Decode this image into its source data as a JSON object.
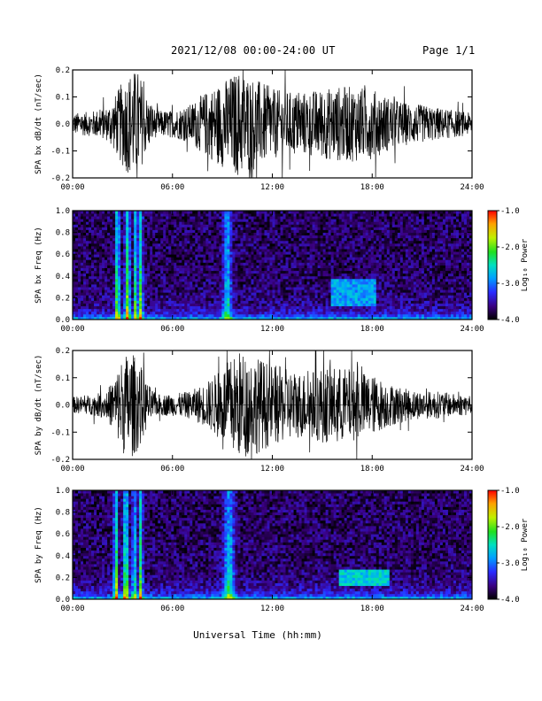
{
  "header": {
    "title": "2021/12/08  00:00-24:00 UT",
    "page": "Page 1/1"
  },
  "footer": {
    "xlabel": "Universal Time (hh:mm)"
  },
  "chart_data": [
    {
      "type": "line",
      "ylabel": "SPA bx dB/dt (nT/sec)",
      "xlim": [
        0,
        24
      ],
      "ylim": [
        -0.2,
        0.2
      ],
      "x_ticks": [
        "00:00",
        "06:00",
        "12:00",
        "18:00",
        "24:00"
      ],
      "y_ticks": [
        "-0.2",
        "-0.1",
        "0.0",
        "0.1",
        "0.2"
      ],
      "envelope": {
        "x": [
          0,
          1,
          2,
          2.5,
          3,
          3.5,
          4,
          4.3,
          5,
          6,
          7,
          8,
          9,
          10,
          11,
          12,
          13,
          14,
          15,
          16,
          17,
          18,
          19,
          20,
          21,
          22,
          23,
          24
        ],
        "amp": [
          0.04,
          0.045,
          0.06,
          0.1,
          0.16,
          0.2,
          0.2,
          0.12,
          0.05,
          0.05,
          0.07,
          0.12,
          0.16,
          0.2,
          0.17,
          0.13,
          0.12,
          0.12,
          0.13,
          0.14,
          0.14,
          0.13,
          0.1,
          0.08,
          0.07,
          0.06,
          0.05,
          0.04
        ]
      }
    },
    {
      "type": "heatmap",
      "ylabel": "SPA bx Freq (Hz)",
      "colorbar_label": "Log₁₀ Power",
      "xlim": [
        0,
        24
      ],
      "ylim": [
        0,
        1.0
      ],
      "clim": [
        -4.0,
        -1.0
      ],
      "x_ticks": [
        "00:00",
        "06:00",
        "12:00",
        "18:00",
        "24:00"
      ],
      "y_ticks": [
        "0.0",
        "0.2",
        "0.4",
        "0.6",
        "0.8",
        "1.0"
      ],
      "cbar_ticks": [
        "-4.0",
        "-3.0",
        "-2.0",
        "-1.0"
      ],
      "bursts": [
        {
          "t": 2.7,
          "width": 0.12,
          "level": -1.9
        },
        {
          "t": 3.3,
          "width": 0.15,
          "level": -2.0
        },
        {
          "t": 3.8,
          "width": 0.1,
          "level": -2.1
        },
        {
          "t": 4.1,
          "width": 0.12,
          "level": -2.0
        },
        {
          "t": 9.3,
          "width": 0.25,
          "level": -2.7
        }
      ],
      "patches": [
        {
          "t0": 15.5,
          "t1": 18.3,
          "f0": 0.12,
          "f1": 0.38,
          "level": -2.6
        }
      ]
    },
    {
      "type": "line",
      "ylabel": "SPA by dB/dt (nT/sec)",
      "xlim": [
        0,
        24
      ],
      "ylim": [
        -0.2,
        0.2
      ],
      "x_ticks": [
        "00:00",
        "06:00",
        "12:00",
        "18:00",
        "24:00"
      ],
      "y_ticks": [
        "-0.2",
        "-0.1",
        "0.0",
        "0.1",
        "0.2"
      ],
      "envelope": {
        "x": [
          0,
          1,
          2,
          2.5,
          3,
          3.5,
          4,
          4.5,
          5,
          6,
          7,
          8,
          9,
          10,
          11,
          12,
          13,
          14,
          15,
          16,
          17,
          18,
          19,
          20,
          21,
          22,
          23,
          24
        ],
        "amp": [
          0.03,
          0.035,
          0.05,
          0.1,
          0.18,
          0.2,
          0.16,
          0.08,
          0.04,
          0.04,
          0.05,
          0.08,
          0.14,
          0.2,
          0.18,
          0.15,
          0.13,
          0.12,
          0.14,
          0.14,
          0.13,
          0.11,
          0.08,
          0.06,
          0.05,
          0.05,
          0.04,
          0.04
        ]
      }
    },
    {
      "type": "heatmap",
      "ylabel": "SPA by Freq (Hz)",
      "colorbar_label": "Log₁₀ Power",
      "xlim": [
        0,
        24
      ],
      "ylim": [
        0,
        1.0
      ],
      "clim": [
        -4.0,
        -1.0
      ],
      "x_ticks": [
        "00:00",
        "06:00",
        "12:00",
        "18:00",
        "24:00"
      ],
      "y_ticks": [
        "0.0",
        "0.2",
        "0.4",
        "0.6",
        "0.8",
        "1.0"
      ],
      "cbar_ticks": [
        "-4.0",
        "-3.0",
        "-2.0",
        "-1.0"
      ],
      "bursts": [
        {
          "t": 2.6,
          "width": 0.12,
          "level": -1.9
        },
        {
          "t": 3.2,
          "width": 0.15,
          "level": -2.0
        },
        {
          "t": 3.7,
          "width": 0.1,
          "level": -2.2
        },
        {
          "t": 4.1,
          "width": 0.12,
          "level": -2.1
        },
        {
          "t": 9.4,
          "width": 0.3,
          "level": -2.6
        }
      ],
      "patches": [
        {
          "t0": 16.0,
          "t1": 19.0,
          "f0": 0.12,
          "f1": 0.28,
          "level": -2.4
        }
      ]
    }
  ]
}
